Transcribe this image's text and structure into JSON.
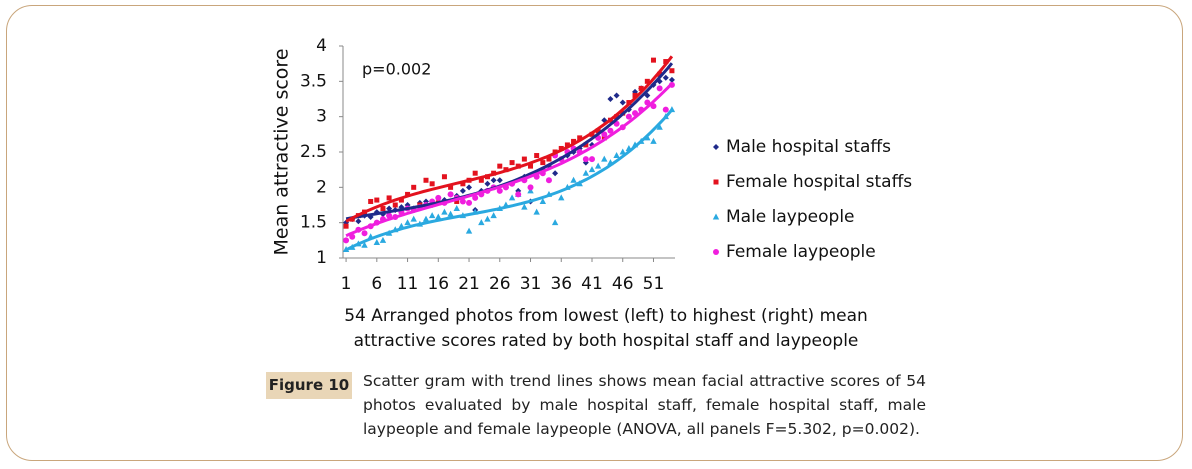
{
  "chart_data": {
    "type": "scatter",
    "annotation": "p=0.002",
    "y_label": "Mean attractive score",
    "x_label_lines": [
      "54 Arranged photos from lowest (left) to highest (right) mean",
      "attractive scores rated by both hospital staff and laypeople"
    ],
    "x": [
      1,
      2,
      3,
      4,
      5,
      6,
      7,
      8,
      9,
      10,
      11,
      12,
      13,
      14,
      15,
      16,
      17,
      18,
      19,
      20,
      21,
      22,
      23,
      24,
      25,
      26,
      27,
      28,
      29,
      30,
      31,
      32,
      33,
      34,
      35,
      36,
      37,
      38,
      39,
      40,
      41,
      42,
      43,
      44,
      45,
      46,
      47,
      48,
      49,
      50,
      51,
      52,
      53,
      54
    ],
    "xlim": [
      0.5,
      54.5
    ],
    "xticks": [
      1,
      6,
      11,
      16,
      21,
      26,
      31,
      36,
      41,
      46,
      51
    ],
    "ylim": [
      1,
      4
    ],
    "yticks": [
      1,
      1.5,
      2,
      2.5,
      3,
      3.5,
      4
    ],
    "trend_lines": true,
    "series": [
      {
        "name": "Male hospital staffs",
        "color": "#1f2a8a",
        "marker": "diamond",
        "values": [
          1.5,
          1.55,
          1.52,
          1.6,
          1.58,
          1.65,
          1.62,
          1.7,
          1.68,
          1.72,
          1.75,
          1.7,
          1.78,
          1.8,
          1.75,
          1.85,
          1.82,
          1.9,
          1.88,
          1.95,
          2.0,
          1.68,
          1.95,
          2.05,
          2.1,
          2.1,
          2.0,
          2.05,
          1.95,
          2.15,
          1.8,
          2.2,
          2.25,
          2.3,
          2.2,
          2.4,
          2.45,
          2.5,
          2.55,
          2.35,
          2.6,
          2.8,
          2.95,
          3.25,
          3.3,
          3.2,
          3.1,
          3.35,
          3.4,
          3.3,
          3.45,
          3.5,
          3.55,
          3.52
        ]
      },
      {
        "name": "Female hospital staffs",
        "color": "#e3121e",
        "marker": "square",
        "values": [
          1.45,
          1.55,
          1.6,
          1.65,
          1.8,
          1.82,
          1.7,
          1.85,
          1.75,
          1.82,
          1.9,
          2.0,
          1.75,
          2.1,
          2.05,
          1.78,
          2.15,
          2.0,
          1.8,
          2.05,
          2.1,
          2.2,
          2.1,
          2.15,
          2.2,
          2.3,
          2.25,
          2.35,
          2.3,
          2.4,
          2.3,
          2.45,
          2.35,
          2.4,
          2.5,
          2.55,
          2.6,
          2.65,
          2.7,
          2.6,
          2.75,
          2.8,
          2.7,
          2.95,
          3.0,
          3.05,
          3.2,
          3.3,
          3.4,
          3.5,
          3.8,
          3.6,
          3.78,
          3.65
        ]
      },
      {
        "name": "Male laypeople",
        "color": "#2aa9e0",
        "marker": "triangle",
        "values": [
          1.12,
          1.15,
          1.2,
          1.18,
          1.3,
          1.22,
          1.25,
          1.35,
          1.4,
          1.45,
          1.5,
          1.55,
          1.48,
          1.55,
          1.6,
          1.58,
          1.65,
          1.62,
          1.7,
          1.6,
          1.38,
          1.65,
          1.5,
          1.55,
          1.6,
          1.7,
          1.75,
          1.85,
          1.9,
          1.72,
          1.95,
          1.65,
          1.8,
          1.9,
          1.5,
          1.85,
          2.0,
          2.1,
          2.05,
          2.2,
          2.25,
          2.3,
          2.4,
          2.35,
          2.45,
          2.5,
          2.55,
          2.6,
          2.65,
          2.7,
          2.65,
          2.85,
          3.0,
          3.1
        ]
      },
      {
        "name": "Female laypeople",
        "color": "#f01ede",
        "marker": "circle",
        "values": [
          1.25,
          1.3,
          1.4,
          1.35,
          1.45,
          1.5,
          1.55,
          1.6,
          1.58,
          1.65,
          1.7,
          1.68,
          1.72,
          1.75,
          1.8,
          1.85,
          1.78,
          1.9,
          1.85,
          1.8,
          1.78,
          1.85,
          1.9,
          1.95,
          2.0,
          1.95,
          2.0,
          2.05,
          1.9,
          2.1,
          2.0,
          2.15,
          2.2,
          2.1,
          2.45,
          2.4,
          2.5,
          2.55,
          2.5,
          2.4,
          2.4,
          2.7,
          2.75,
          2.8,
          2.9,
          2.85,
          3.0,
          3.05,
          3.1,
          3.2,
          3.15,
          3.4,
          3.1,
          3.45
        ]
      }
    ]
  },
  "figure": {
    "label": "Figure 10",
    "caption": "Scatter gram with trend lines shows mean facial attractive scores of 54 photos evaluated by male hospital staff, female hospital staff, male laypeople and female laypeople (ANOVA, all panels F=5.302, p=0.002)."
  }
}
